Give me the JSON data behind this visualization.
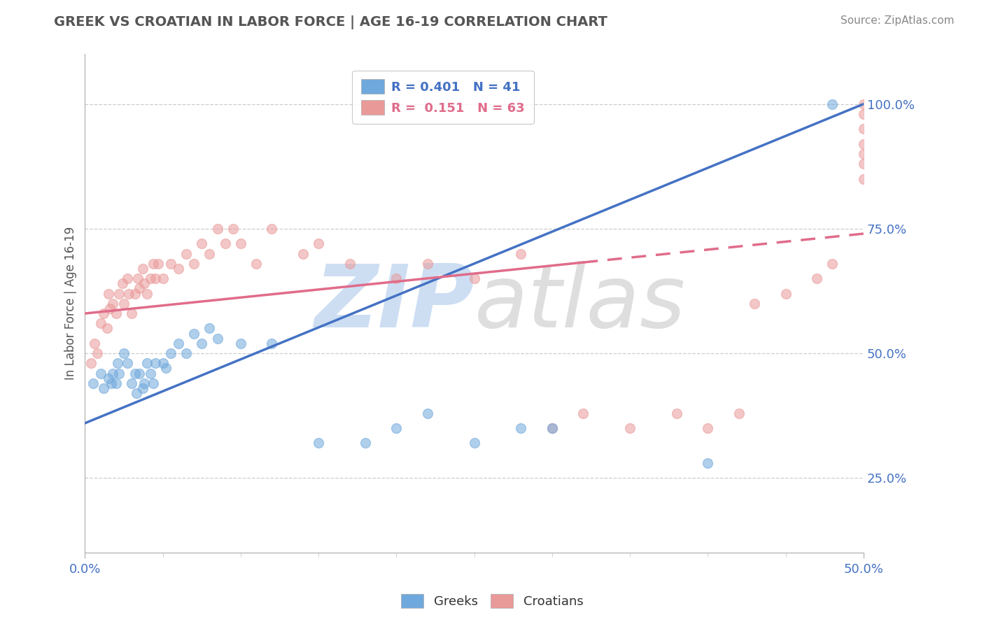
{
  "title": "GREEK VS CROATIAN IN LABOR FORCE | AGE 16-19 CORRELATION CHART",
  "source": "Source: ZipAtlas.com",
  "ylabel": "In Labor Force | Age 16-19",
  "ytick_labels": [
    "25.0%",
    "50.0%",
    "75.0%",
    "100.0%"
  ],
  "ytick_values": [
    0.25,
    0.5,
    0.75,
    1.0
  ],
  "xlim": [
    0.0,
    0.5
  ],
  "ylim": [
    0.1,
    1.1
  ],
  "greek_color": "#6fa8dc",
  "croatian_color": "#ea9999",
  "greek_line_color": "#4472c4",
  "croatian_line_color": "#e06c8a",
  "legend_greek_r": "0.401",
  "legend_greek_n": "41",
  "legend_croatian_r": "0.151",
  "legend_croatian_n": "63",
  "greek_line_x0": 0.0,
  "greek_line_y0": 0.36,
  "greek_line_x1": 0.5,
  "greek_line_y1": 1.0,
  "croatian_line_x0": 0.0,
  "croatian_line_y0": 0.58,
  "croatian_line_x1": 0.5,
  "croatian_line_y1": 0.74,
  "croatian_line_dash_x0": 0.32,
  "croatian_line_dash_y0": 0.685,
  "croatian_line_dash_x1": 0.5,
  "croatian_line_dash_y1": 0.74,
  "greek_scatter_x": [
    0.005,
    0.01,
    0.012,
    0.015,
    0.017,
    0.018,
    0.02,
    0.021,
    0.022,
    0.025,
    0.027,
    0.03,
    0.032,
    0.033,
    0.035,
    0.037,
    0.038,
    0.04,
    0.042,
    0.044,
    0.045,
    0.05,
    0.052,
    0.055,
    0.06,
    0.065,
    0.07,
    0.075,
    0.08,
    0.085,
    0.1,
    0.12,
    0.15,
    0.18,
    0.2,
    0.22,
    0.25,
    0.28,
    0.3,
    0.4,
    0.48
  ],
  "greek_scatter_y": [
    0.44,
    0.46,
    0.43,
    0.45,
    0.44,
    0.46,
    0.44,
    0.48,
    0.46,
    0.5,
    0.48,
    0.44,
    0.46,
    0.42,
    0.46,
    0.43,
    0.44,
    0.48,
    0.46,
    0.44,
    0.48,
    0.48,
    0.47,
    0.5,
    0.52,
    0.5,
    0.54,
    0.52,
    0.55,
    0.53,
    0.52,
    0.52,
    0.32,
    0.32,
    0.35,
    0.38,
    0.32,
    0.35,
    0.35,
    0.28,
    1.0
  ],
  "croatian_scatter_x": [
    0.004,
    0.006,
    0.008,
    0.01,
    0.012,
    0.014,
    0.015,
    0.016,
    0.018,
    0.02,
    0.022,
    0.024,
    0.025,
    0.027,
    0.028,
    0.03,
    0.032,
    0.034,
    0.035,
    0.037,
    0.038,
    0.04,
    0.042,
    0.044,
    0.045,
    0.047,
    0.05,
    0.055,
    0.06,
    0.065,
    0.07,
    0.075,
    0.08,
    0.085,
    0.09,
    0.095,
    0.1,
    0.11,
    0.12,
    0.14,
    0.15,
    0.17,
    0.2,
    0.22,
    0.25,
    0.28,
    0.3,
    0.32,
    0.35,
    0.38,
    0.4,
    0.42,
    0.43,
    0.45,
    0.47,
    0.48,
    0.5,
    0.5,
    0.5,
    0.5,
    0.5,
    0.5,
    0.5
  ],
  "croatian_scatter_y": [
    0.48,
    0.52,
    0.5,
    0.56,
    0.58,
    0.55,
    0.62,
    0.59,
    0.6,
    0.58,
    0.62,
    0.64,
    0.6,
    0.65,
    0.62,
    0.58,
    0.62,
    0.65,
    0.63,
    0.67,
    0.64,
    0.62,
    0.65,
    0.68,
    0.65,
    0.68,
    0.65,
    0.68,
    0.67,
    0.7,
    0.68,
    0.72,
    0.7,
    0.75,
    0.72,
    0.75,
    0.72,
    0.68,
    0.75,
    0.7,
    0.72,
    0.68,
    0.65,
    0.68,
    0.65,
    0.7,
    0.35,
    0.38,
    0.35,
    0.38,
    0.35,
    0.38,
    0.6,
    0.62,
    0.65,
    0.68,
    0.9,
    0.92,
    0.95,
    0.98,
    1.0,
    0.88,
    0.85
  ]
}
